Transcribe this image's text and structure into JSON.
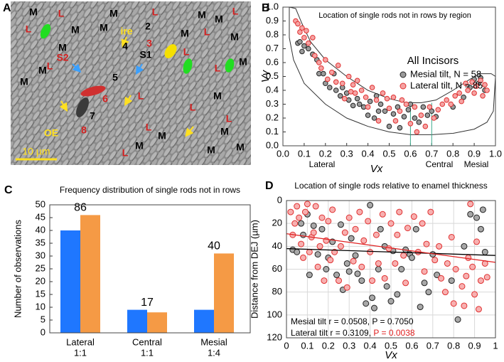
{
  "image_panel": {
    "panel_label": "A",
    "labels": [
      {
        "text": "M",
        "color": "#000000"
      },
      {
        "text": "L",
        "color": "#d42020"
      },
      {
        "text": "M",
        "color": "#000000"
      },
      {
        "text": "L",
        "color": "#d42020"
      },
      {
        "text": "M",
        "color": "#000000"
      },
      {
        "text": "L",
        "color": "#d42020"
      },
      {
        "text": "M",
        "color": "#000000"
      },
      {
        "text": "L",
        "color": "#d42020"
      },
      {
        "text": "M",
        "color": "#000000"
      },
      {
        "text": "M",
        "color": "#000000"
      },
      {
        "text": "2",
        "color": "#000000"
      },
      {
        "text": "ire",
        "color": "#ffe020"
      },
      {
        "text": "M",
        "color": "#000000"
      },
      {
        "text": "L",
        "color": "#d42020"
      },
      {
        "text": "M",
        "color": "#000000"
      },
      {
        "text": "3",
        "color": "#d42020"
      },
      {
        "text": "4",
        "color": "#000000"
      },
      {
        "text": "S1",
        "color": "#000000"
      },
      {
        "text": "M",
        "color": "#000000"
      },
      {
        "text": "S2",
        "color": "#d42020"
      },
      {
        "text": "L",
        "color": "#d42020"
      },
      {
        "text": "L",
        "color": "#d42020"
      },
      {
        "text": "L",
        "color": "#d42020"
      },
      {
        "text": "M",
        "color": "#000000"
      },
      {
        "text": "M",
        "color": "#000000"
      },
      {
        "text": "5",
        "color": "#000000"
      },
      {
        "text": "M",
        "color": "#000000"
      },
      {
        "text": "6",
        "color": "#d42020"
      },
      {
        "text": "L",
        "color": "#d42020"
      },
      {
        "text": "M",
        "color": "#000000"
      },
      {
        "text": "L",
        "color": "#d42020"
      },
      {
        "text": "7",
        "color": "#000000"
      },
      {
        "text": "L",
        "color": "#d42020"
      },
      {
        "text": "8",
        "color": "#d42020"
      },
      {
        "text": "OE",
        "color": "#ffe020"
      },
      {
        "text": "L",
        "color": "#d42020"
      },
      {
        "text": "M",
        "color": "#000000"
      },
      {
        "text": "M",
        "color": "#000000"
      },
      {
        "text": "M",
        "color": "#000000"
      },
      {
        "text": "L",
        "color": "#d42020"
      },
      {
        "text": "M",
        "color": "#000000"
      },
      {
        "text": "M",
        "color": "#000000"
      }
    ],
    "scale_label": "10 µm",
    "scale_color": "#ffe020"
  },
  "chart_data": [
    {
      "type": "scatter",
      "panel_label": "B",
      "title": "Location of single rods not in rows by region",
      "xlabel": "Vx",
      "ylabel": "Vy",
      "region_labels": [
        "Lateral",
        "Central",
        "Mesial"
      ],
      "xlim": [
        0,
        1
      ],
      "ylim": [
        0,
        1
      ],
      "xticks": [
        {
          "value": 0,
          "label": "0.0"
        },
        0.1,
        0.2,
        0.3,
        0.4,
        0.5,
        0.6,
        0.7,
        0.8,
        0.9,
        {
          "value": 1,
          "label": "1.0"
        }
      ],
      "yticks": [
        {
          "value": 0,
          "label": "0.0"
        },
        0.1,
        0.2,
        0.3,
        0.4,
        0.5,
        0.6,
        0.7,
        0.8,
        0.9,
        {
          "value": 1,
          "label": "1.0"
        }
      ],
      "grid": false,
      "legend": "right",
      "legend_title": "All Incisors",
      "outline": {
        "color": "#333333",
        "x": [
          0.03,
          0.03,
          0.05,
          0.1,
          0.2,
          0.3,
          0.4,
          0.5,
          0.6,
          0.7,
          0.8,
          0.9,
          0.96,
          0.99,
          1.0,
          0.98,
          0.93,
          0.88,
          0.8,
          0.72,
          0.65,
          0.58,
          0.5,
          0.4,
          0.3,
          0.2,
          0.13,
          0.09,
          0.06,
          0.03
        ],
        "y": [
          1.0,
          0.78,
          0.62,
          0.45,
          0.3,
          0.2,
          0.14,
          0.1,
          0.08,
          0.08,
          0.09,
          0.12,
          0.17,
          0.25,
          0.5,
          0.52,
          0.52,
          0.48,
          0.4,
          0.33,
          0.31,
          0.31,
          0.34,
          0.4,
          0.5,
          0.62,
          0.75,
          0.88,
          0.99,
          1.0
        ]
      },
      "region_lines": {
        "color": "#3aa88a",
        "x": [
          0.6,
          0.7
        ],
        "top": 0.31
      },
      "series": [
        {
          "name": "Mesial tilt, N = 58",
          "color": "#9a9a9a",
          "edge": "#222222",
          "x": [
            0.07,
            0.08,
            0.1,
            0.12,
            0.14,
            0.16,
            0.17,
            0.19,
            0.2,
            0.22,
            0.24,
            0.25,
            0.27,
            0.28,
            0.3,
            0.31,
            0.33,
            0.35,
            0.36,
            0.38,
            0.4,
            0.41,
            0.43,
            0.44,
            0.46,
            0.48,
            0.5,
            0.52,
            0.54,
            0.55,
            0.57,
            0.59,
            0.62,
            0.64,
            0.66,
            0.68,
            0.7,
            0.72,
            0.8,
            0.85,
            0.88,
            0.9,
            0.92,
            0.93,
            0.95,
            0.09,
            0.45,
            0.6
          ],
          "values": [
            0.74,
            0.75,
            0.72,
            0.7,
            0.66,
            0.62,
            0.52,
            0.52,
            0.45,
            0.42,
            0.52,
            0.4,
            0.36,
            0.42,
            0.38,
            0.33,
            0.29,
            0.34,
            0.3,
            0.28,
            0.22,
            0.32,
            0.2,
            0.36,
            0.3,
            0.25,
            0.14,
            0.23,
            0.28,
            0.13,
            0.21,
            0.26,
            0.2,
            0.17,
            0.28,
            0.22,
            0.25,
            0.21,
            0.28,
            0.35,
            0.42,
            0.48,
            0.45,
            0.49,
            0.4,
            0.68,
            0.25,
            0.3
          ]
        },
        {
          "name": "Lateral tilt, N = 85",
          "color": "#f5a3a3",
          "edge": "#e03030",
          "x": [
            0.06,
            0.07,
            0.09,
            0.1,
            0.11,
            0.12,
            0.14,
            0.15,
            0.17,
            0.18,
            0.2,
            0.21,
            0.23,
            0.25,
            0.26,
            0.28,
            0.29,
            0.31,
            0.32,
            0.34,
            0.35,
            0.37,
            0.39,
            0.4,
            0.42,
            0.44,
            0.45,
            0.47,
            0.49,
            0.5,
            0.52,
            0.53,
            0.56,
            0.58,
            0.6,
            0.62,
            0.63,
            0.65,
            0.67,
            0.69,
            0.71,
            0.73,
            0.75,
            0.77,
            0.79,
            0.81,
            0.83,
            0.84,
            0.86,
            0.87,
            0.89,
            0.9,
            0.91,
            0.93,
            0.94,
            0.95,
            0.96,
            0.55,
            0.33,
            0.08
          ],
          "values": [
            0.9,
            0.88,
            0.85,
            0.78,
            0.83,
            0.74,
            0.78,
            0.65,
            0.6,
            0.56,
            0.62,
            0.48,
            0.53,
            0.46,
            0.58,
            0.45,
            0.34,
            0.5,
            0.39,
            0.38,
            0.47,
            0.4,
            0.35,
            0.28,
            0.42,
            0.33,
            0.18,
            0.38,
            0.34,
            0.27,
            0.35,
            0.18,
            0.33,
            0.3,
            0.16,
            0.28,
            0.1,
            0.22,
            0.14,
            0.28,
            0.2,
            0.26,
            0.3,
            0.33,
            0.3,
            0.36,
            0.38,
            0.32,
            0.45,
            0.4,
            0.46,
            0.38,
            0.43,
            0.47,
            0.36,
            0.44,
            0.4,
            0.25,
            0.44,
            0.82
          ]
        }
      ]
    },
    {
      "type": "bar",
      "panel_label": "C",
      "title": "Frequency distribution of single rods not in rows",
      "ylabel": "Number of observations",
      "categories": [
        "Lateral",
        "Central",
        "Mesial"
      ],
      "category_ratios": [
        "1:1",
        "1:1",
        "1:4"
      ],
      "group_totals": [
        86,
        17,
        40
      ],
      "ylim": [
        0,
        50
      ],
      "yticks": [
        0,
        5,
        10,
        15,
        20,
        25,
        30,
        35,
        40,
        45,
        50
      ],
      "grid": false,
      "series": [
        {
          "color": "#1f77ff",
          "values": [
            40,
            9,
            9
          ]
        },
        {
          "color": "#f59a45",
          "values": [
            46,
            8,
            31
          ]
        }
      ]
    },
    {
      "type": "scatter",
      "panel_label": "D",
      "title": "Location of single rods relative to enamel thickness",
      "xlabel": "Vx",
      "ylabel": "Distance from DEJ (µm)",
      "xlim": [
        0,
        1
      ],
      "ylim": [
        120,
        0
      ],
      "xticks": [
        0,
        0.1,
        0.2,
        0.3,
        0.4,
        0.5,
        0.6,
        0.7,
        0.8,
        0.9,
        1
      ],
      "yticks": [
        0,
        20,
        40,
        60,
        80,
        100,
        120
      ],
      "grid": true,
      "annotations": [
        [
          {
            "text": "Mesial tilt r = 0.0508, P = 0.7050",
            "color": "#000000"
          }
        ],
        [
          {
            "text": "Lateral tilt r = 0.3109, ",
            "color": "#000000"
          },
          {
            "text": "P = 0.0038",
            "color": "#e02020"
          }
        ]
      ],
      "trend_lines": [
        {
          "color": "#000000",
          "x": [
            0,
            1
          ],
          "values": [
            42,
            48
          ]
        },
        {
          "color": "#e02020",
          "x": [
            0,
            1
          ],
          "values": [
            29,
            54
          ]
        }
      ],
      "series": [
        {
          "color": "#a8a8a8",
          "edge": "#222222",
          "x": [
            0.03,
            0.05,
            0.07,
            0.08,
            0.1,
            0.11,
            0.13,
            0.15,
            0.17,
            0.19,
            0.2,
            0.22,
            0.24,
            0.26,
            0.27,
            0.29,
            0.3,
            0.31,
            0.33,
            0.34,
            0.36,
            0.38,
            0.4,
            0.41,
            0.42,
            0.44,
            0.45,
            0.47,
            0.48,
            0.5,
            0.51,
            0.53,
            0.55,
            0.57,
            0.59,
            0.6,
            0.62,
            0.64,
            0.66,
            0.68,
            0.7,
            0.72,
            0.79,
            0.82,
            0.85,
            0.88,
            0.91,
            0.93,
            0.94,
            0.95
          ],
          "values": [
            43,
            45,
            20,
            30,
            12,
            65,
            22,
            47,
            25,
            60,
            50,
            36,
            65,
            21,
            78,
            55,
            62,
            33,
            48,
            64,
            70,
            90,
            4,
            85,
            94,
            60,
            25,
            40,
            75,
            88,
            44,
            82,
            60,
            43,
            47,
            50,
            25,
            93,
            72,
            80,
            47,
            65,
            70,
            104,
            40,
            12,
            15,
            25,
            8,
            45
          ]
        },
        {
          "color": "#f7b0b0",
          "edge": "#e03030",
          "x": [
            0.02,
            0.03,
            0.04,
            0.05,
            0.06,
            0.07,
            0.08,
            0.09,
            0.1,
            0.11,
            0.12,
            0.13,
            0.14,
            0.15,
            0.16,
            0.17,
            0.18,
            0.19,
            0.2,
            0.21,
            0.22,
            0.23,
            0.25,
            0.26,
            0.28,
            0.29,
            0.3,
            0.32,
            0.33,
            0.35,
            0.36,
            0.37,
            0.39,
            0.4,
            0.41,
            0.43,
            0.44,
            0.46,
            0.47,
            0.49,
            0.5,
            0.52,
            0.53,
            0.54,
            0.56,
            0.57,
            0.58,
            0.61,
            0.63,
            0.65,
            0.66,
            0.67,
            0.69,
            0.71,
            0.73,
            0.74,
            0.76,
            0.77,
            0.79,
            0.8,
            0.81,
            0.84,
            0.85,
            0.86,
            0.87,
            0.88,
            0.89,
            0.9,
            0.91,
            0.92,
            0.93,
            0.95,
            0.96
          ],
          "values": [
            10,
            30,
            20,
            5,
            15,
            38,
            50,
            10,
            3,
            45,
            32,
            28,
            5,
            58,
            40,
            15,
            70,
            35,
            18,
            52,
            8,
            45,
            70,
            40,
            28,
            76,
            15,
            53,
            25,
            10,
            58,
            35,
            18,
            45,
            70,
            30,
            55,
            12,
            68,
            42,
            20,
            55,
            30,
            10,
            48,
            72,
            24,
            14,
            45,
            20,
            62,
            38,
            10,
            52,
            40,
            68,
            80,
            55,
            32,
            90,
            60,
            75,
            92,
            66,
            50,
            3,
            58,
            82,
            36,
            95,
            70,
            55,
            67
          ]
        }
      ]
    }
  ]
}
